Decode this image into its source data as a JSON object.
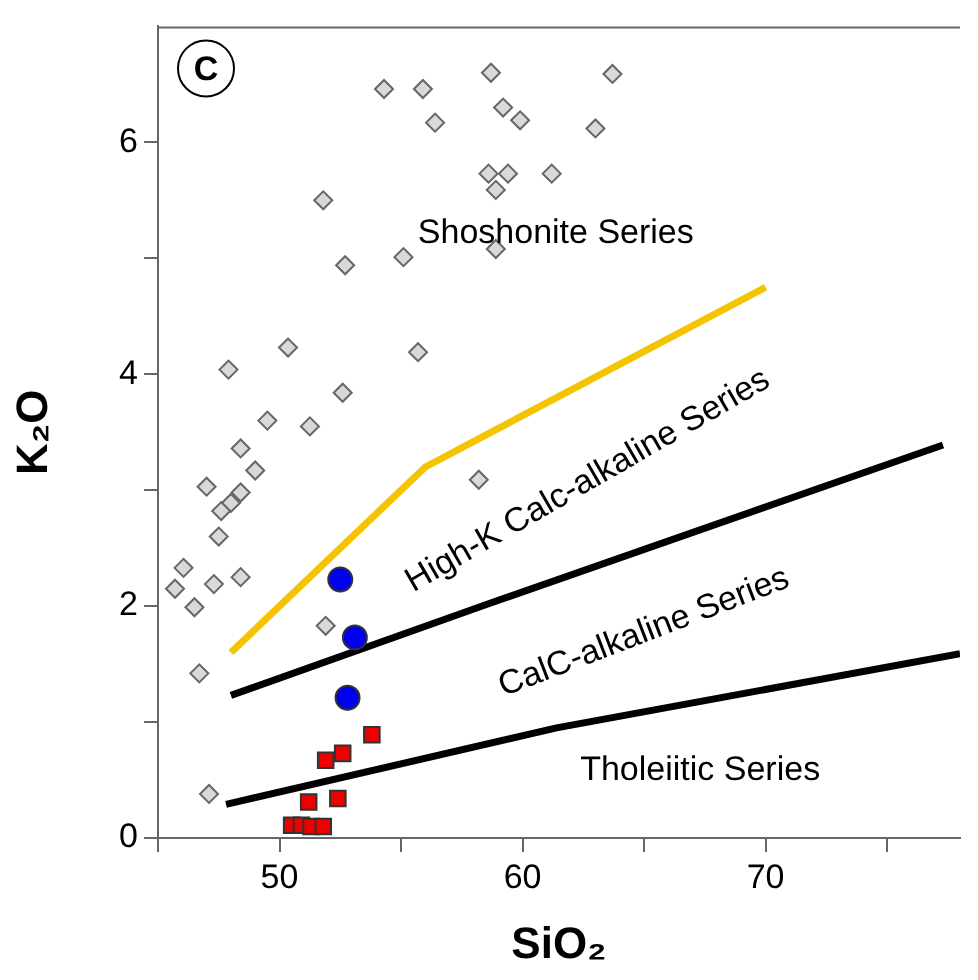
{
  "chart_data": {
    "type": "scatter",
    "xlabel": "SiO₂",
    "ylabel": "K₂O",
    "xlim": [
      45,
      78
    ],
    "ylim": [
      0,
      7
    ],
    "xticks": [
      {
        "value": 45,
        "label": null
      },
      50,
      {
        "value": 55,
        "label": null
      },
      60,
      {
        "value": 65,
        "label": null
      },
      70,
      {
        "value": 75,
        "label": null
      }
    ],
    "yticks": [
      0,
      {
        "value": 1,
        "label": null
      },
      2,
      {
        "value": 3,
        "label": null
      },
      4,
      {
        "value": 5,
        "label": null
      },
      6
    ],
    "grid": false,
    "legend": false,
    "annotations": [
      "C",
      "Shoshonite Series",
      "High-K Calc-alkaline Series",
      "CalC-alkaline Series",
      "Tholeiitic Series"
    ],
    "series": [
      {
        "type": "line",
        "color": "#f5c400",
        "marker": "none",
        "x": [
          48,
          56,
          70
        ],
        "values": [
          1.6,
          3.2,
          4.75
        ]
      },
      {
        "type": "line",
        "color": "#000000",
        "marker": "none",
        "x": [
          48,
          58.6,
          77.3
        ],
        "values": [
          1.23,
          2.02,
          3.39
        ]
      },
      {
        "type": "line",
        "color": "#000000",
        "marker": "none",
        "x": [
          47.8,
          61.4,
          78
        ],
        "values": [
          0.29,
          0.95,
          1.59
        ]
      },
      {
        "type": "scatter",
        "color": "#d9d9d9",
        "marker": "diamond",
        "x": [
          58.7,
          54.3,
          55.9,
          56.4,
          59.2,
          59.9,
          58.6,
          59.4,
          58.9,
          61.2,
          51.8,
          55.1,
          58.9,
          52.7,
          50.35,
          55.7,
          47.9,
          52.6,
          49.5,
          51.25,
          48.4,
          49,
          58.2,
          47,
          48.4,
          48,
          47.6,
          47.5,
          46.05,
          45.7,
          47.3,
          48.4,
          46.5,
          51.9,
          46.7,
          47.1,
          63.7,
          63
        ],
        "values": [
          6.6,
          6.46,
          6.46,
          6.17,
          6.3,
          6.19,
          5.73,
          5.73,
          5.59,
          5.73,
          5.5,
          5.01,
          5.08,
          4.94,
          4.23,
          4.19,
          4.04,
          3.84,
          3.6,
          3.55,
          3.36,
          3.17,
          3.09,
          3.03,
          2.98,
          2.89,
          2.82,
          2.6,
          2.33,
          2.15,
          2.19,
          2.25,
          1.99,
          1.83,
          1.42,
          0.38,
          6.59,
          6.12
        ]
      },
      {
        "type": "scatter",
        "color": "#0000ee",
        "marker": "circle",
        "x": [
          52.5,
          53.1,
          52.8
        ],
        "values": [
          2.23,
          1.73,
          1.21
        ]
      },
      {
        "type": "scatter",
        "color": "#ee0000",
        "marker": "square",
        "x": [
          53.8,
          52.6,
          51.9,
          52.4,
          51.2,
          50.5,
          50.9,
          51.3,
          51.8
        ],
        "values": [
          0.89,
          0.73,
          0.67,
          0.34,
          0.31,
          0.11,
          0.11,
          0.1,
          0.1
        ]
      }
    ]
  }
}
